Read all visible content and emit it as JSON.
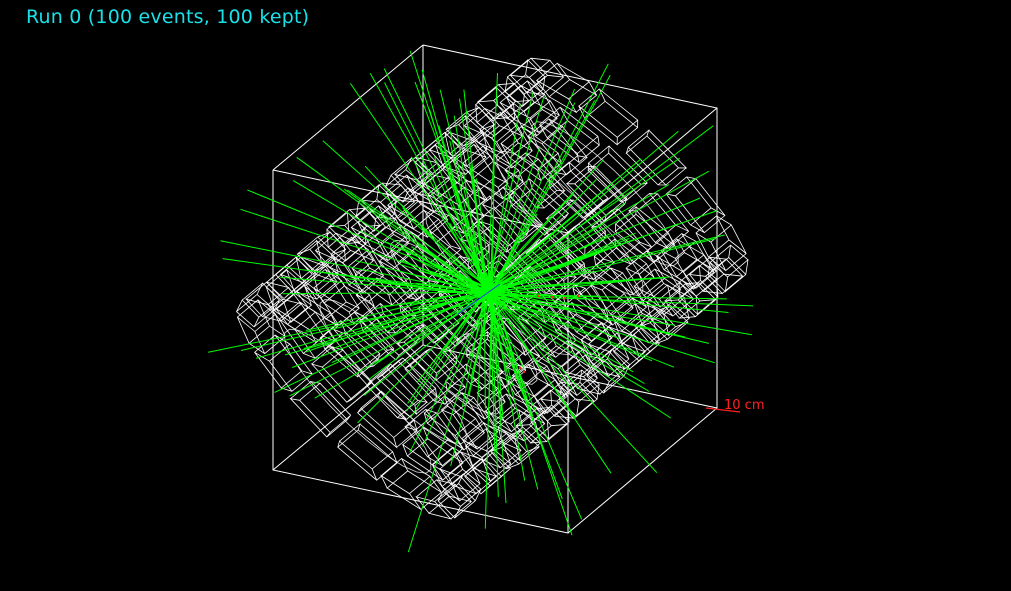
{
  "title": "Run 0 (100 events, 100 kept)",
  "scale": {
    "label": "10 cm"
  },
  "colors": {
    "background": "#000000",
    "title": "#19e1e8",
    "world_box": "#ffffff",
    "detector": "#ffffff",
    "tracks": "#00ff00",
    "scale": "#ff2020",
    "trajectory_points": "#ff2020",
    "axis": "#3030ff"
  },
  "icons": {
    "detector": "calorimeter-wireframe",
    "tracks": "particle-trajectories"
  },
  "event": {
    "events": 100,
    "kept": 100
  }
}
